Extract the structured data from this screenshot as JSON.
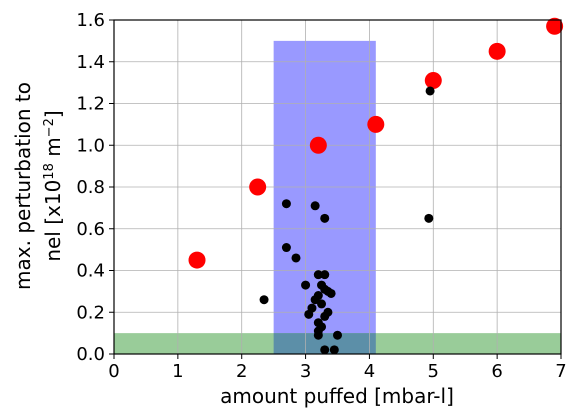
{
  "chart_data": {
    "type": "scatter",
    "title": "",
    "xlabel": "amount puffed [mbar-l]",
    "ylabel_line1": "max. perturbation to",
    "ylabel_line2_prefix": "nel [x10",
    "ylabel_exp": "18",
    "ylabel_unit": " m",
    "ylabel_unit_exp": "−2",
    "ylabel_suffix": "]",
    "xlim": [
      0,
      7
    ],
    "ylim": [
      0,
      1.6
    ],
    "xticks": [
      "0",
      "1",
      "2",
      "3",
      "4",
      "5",
      "6",
      "7"
    ],
    "yticks": [
      "0.0",
      "0.2",
      "0.4",
      "0.6",
      "0.8",
      "1.0",
      "1.2",
      "1.4",
      "1.6"
    ],
    "grid": true,
    "regions": [
      {
        "color": "#9999ff",
        "x": [
          2.5,
          4.1
        ],
        "y": [
          0,
          1.5
        ]
      },
      {
        "color": "#99cc99",
        "x": [
          0,
          7
        ],
        "y": [
          0,
          0.1
        ]
      }
    ],
    "overlap_color": "#5c8fa8",
    "series": [
      {
        "color": "#ff0000",
        "points": [
          [
            1.3,
            0.45
          ],
          [
            2.25,
            0.8
          ],
          [
            3.2,
            1.0
          ],
          [
            4.1,
            1.1
          ],
          [
            5.0,
            1.31
          ],
          [
            6.0,
            1.45
          ],
          [
            6.9,
            1.57
          ]
        ]
      },
      {
        "color": "#000000",
        "points": [
          [
            2.35,
            0.26
          ],
          [
            2.7,
            0.72
          ],
          [
            2.7,
            0.51
          ],
          [
            2.85,
            0.46
          ],
          [
            3.0,
            0.33
          ],
          [
            3.15,
            0.71
          ],
          [
            3.3,
            0.65
          ],
          [
            3.2,
            0.38
          ],
          [
            3.3,
            0.38
          ],
          [
            3.25,
            0.33
          ],
          [
            3.3,
            0.31
          ],
          [
            3.35,
            0.3
          ],
          [
            3.4,
            0.29
          ],
          [
            3.2,
            0.28
          ],
          [
            3.15,
            0.26
          ],
          [
            3.25,
            0.24
          ],
          [
            3.1,
            0.22
          ],
          [
            3.05,
            0.19
          ],
          [
            3.35,
            0.2
          ],
          [
            3.3,
            0.18
          ],
          [
            3.2,
            0.15
          ],
          [
            3.25,
            0.13
          ],
          [
            3.2,
            0.11
          ],
          [
            3.2,
            0.09
          ],
          [
            3.5,
            0.09
          ],
          [
            3.3,
            0.02
          ],
          [
            3.45,
            0.02
          ],
          [
            4.95,
            1.26
          ],
          [
            4.93,
            0.65
          ]
        ]
      }
    ]
  }
}
